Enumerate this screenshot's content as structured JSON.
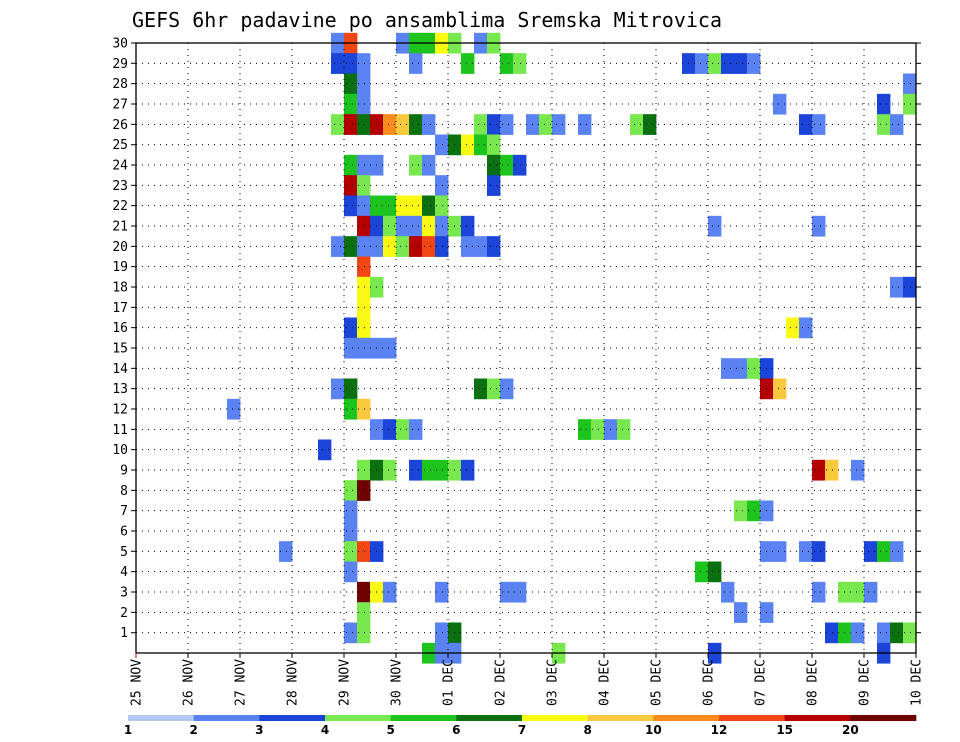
{
  "chart_data": {
    "type": "heatmap",
    "title": "GEFS 6hr padavine po ansamblima Sremska Mitrovica",
    "xlabel": "",
    "ylabel": "",
    "x_tick_labels": [
      "25 NOV",
      "26 NOV",
      "27 NOV",
      "28 NOV",
      "29 NOV",
      "30 NOV",
      "01 DEC",
      "02 DEC",
      "03 DEC",
      "04 DEC",
      "05 DEC",
      "06 DEC",
      "07 DEC",
      "08 DEC",
      "09 DEC",
      "10 DEC"
    ],
    "y_tick_labels": [
      "1",
      "2",
      "3",
      "4",
      "5",
      "6",
      "7",
      "8",
      "9",
      "10",
      "11",
      "12",
      "13",
      "14",
      "15",
      "16",
      "17",
      "18",
      "19",
      "20",
      "21",
      "22",
      "23",
      "24",
      "25",
      "26",
      "27",
      "28",
      "29",
      "30"
    ],
    "xlim": [
      0,
      60
    ],
    "ylim": [
      0,
      30
    ],
    "grid": true,
    "colorbar": {
      "levels": [
        "1",
        "2",
        "3",
        "4",
        "5",
        "6",
        "7",
        "8",
        "10",
        "12",
        "15",
        "20"
      ],
      "colors": [
        "#b4c8f4",
        "#5a82f0",
        "#1a45d8",
        "#78e84e",
        "#1ec41e",
        "#0a7010",
        "#fafa14",
        "#fac83c",
        "#fa8c1e",
        "#f04614",
        "#b40000",
        "#6e0000"
      ]
    },
    "cells": [
      [
        30,
        15,
        1
      ],
      [
        30,
        16,
        9
      ],
      [
        30,
        20,
        1
      ],
      [
        30,
        21,
        4
      ],
      [
        30,
        22,
        4
      ],
      [
        30,
        23,
        6
      ],
      [
        30,
        24,
        3
      ],
      [
        30,
        26,
        1
      ],
      [
        30,
        27,
        3
      ],
      [
        29,
        15,
        2
      ],
      [
        29,
        16,
        2
      ],
      [
        29,
        17,
        1
      ],
      [
        29,
        21,
        1
      ],
      [
        29,
        25,
        4
      ],
      [
        29,
        28,
        4
      ],
      [
        29,
        29,
        3
      ],
      [
        29,
        42,
        2
      ],
      [
        29,
        43,
        1
      ],
      [
        29,
        44,
        3
      ],
      [
        29,
        45,
        2
      ],
      [
        29,
        46,
        2
      ],
      [
        29,
        47,
        1
      ],
      [
        28,
        16,
        5
      ],
      [
        28,
        17,
        1
      ],
      [
        28,
        59,
        1
      ],
      [
        27,
        16,
        4
      ],
      [
        27,
        17,
        1
      ],
      [
        27,
        49,
        1
      ],
      [
        27,
        57,
        2
      ],
      [
        27,
        59,
        3
      ],
      [
        26,
        15,
        3
      ],
      [
        26,
        16,
        10
      ],
      [
        26,
        17,
        5
      ],
      [
        26,
        18,
        10
      ],
      [
        26,
        19,
        8
      ],
      [
        26,
        20,
        7
      ],
      [
        26,
        21,
        5
      ],
      [
        26,
        22,
        1
      ],
      [
        26,
        26,
        3
      ],
      [
        26,
        27,
        2
      ],
      [
        26,
        28,
        1
      ],
      [
        26,
        30,
        1
      ],
      [
        26,
        31,
        3
      ],
      [
        26,
        32,
        1
      ],
      [
        26,
        34,
        1
      ],
      [
        26,
        38,
        3
      ],
      [
        26,
        39,
        5
      ],
      [
        26,
        51,
        2
      ],
      [
        26,
        52,
        1
      ],
      [
        26,
        57,
        3
      ],
      [
        26,
        58,
        1
      ],
      [
        25,
        23,
        1
      ],
      [
        25,
        24,
        5
      ],
      [
        25,
        25,
        6
      ],
      [
        25,
        26,
        4
      ],
      [
        25,
        27,
        3
      ],
      [
        24,
        16,
        4
      ],
      [
        24,
        17,
        1
      ],
      [
        24,
        18,
        1
      ],
      [
        24,
        21,
        3
      ],
      [
        24,
        22,
        1
      ],
      [
        24,
        27,
        5
      ],
      [
        24,
        28,
        4
      ],
      [
        24,
        29,
        2
      ],
      [
        23,
        16,
        10
      ],
      [
        23,
        17,
        3
      ],
      [
        23,
        23,
        1
      ],
      [
        23,
        27,
        2
      ],
      [
        22,
        16,
        2
      ],
      [
        22,
        17,
        1
      ],
      [
        22,
        18,
        4
      ],
      [
        22,
        19,
        4
      ],
      [
        22,
        20,
        6
      ],
      [
        22,
        21,
        6
      ],
      [
        22,
        22,
        5
      ],
      [
        22,
        23,
        3
      ],
      [
        21,
        17,
        10
      ],
      [
        21,
        18,
        2
      ],
      [
        21,
        19,
        3
      ],
      [
        21,
        20,
        1
      ],
      [
        21,
        21,
        1
      ],
      [
        21,
        22,
        6
      ],
      [
        21,
        23,
        1
      ],
      [
        21,
        24,
        3
      ],
      [
        21,
        25,
        2
      ],
      [
        21,
        44,
        1
      ],
      [
        21,
        52,
        1
      ],
      [
        20,
        15,
        1
      ],
      [
        20,
        16,
        5
      ],
      [
        20,
        17,
        1
      ],
      [
        20,
        18,
        1
      ],
      [
        20,
        19,
        6
      ],
      [
        20,
        20,
        3
      ],
      [
        20,
        21,
        10
      ],
      [
        20,
        22,
        9
      ],
      [
        20,
        23,
        2
      ],
      [
        20,
        25,
        1
      ],
      [
        20,
        26,
        1
      ],
      [
        20,
        27,
        2
      ],
      [
        19,
        17,
        9
      ],
      [
        18,
        17,
        6
      ],
      [
        18,
        18,
        3
      ],
      [
        18,
        58,
        1
      ],
      [
        18,
        59,
        2
      ],
      [
        17,
        17,
        6
      ],
      [
        16,
        16,
        2
      ],
      [
        16,
        17,
        6
      ],
      [
        16,
        50,
        6
      ],
      [
        16,
        51,
        1
      ],
      [
        15,
        16,
        1
      ],
      [
        15,
        17,
        1
      ],
      [
        15,
        18,
        1
      ],
      [
        15,
        19,
        1
      ],
      [
        14,
        45,
        1
      ],
      [
        14,
        46,
        1
      ],
      [
        14,
        47,
        3
      ],
      [
        14,
        48,
        2
      ],
      [
        13,
        15,
        1
      ],
      [
        13,
        16,
        5
      ],
      [
        13,
        26,
        5
      ],
      [
        13,
        27,
        3
      ],
      [
        13,
        28,
        1
      ],
      [
        13,
        48,
        10
      ],
      [
        13,
        49,
        7
      ],
      [
        12,
        7,
        1
      ],
      [
        12,
        16,
        4
      ],
      [
        12,
        17,
        7
      ],
      [
        11,
        18,
        1
      ],
      [
        11,
        19,
        2
      ],
      [
        11,
        20,
        3
      ],
      [
        11,
        21,
        1
      ],
      [
        11,
        34,
        4
      ],
      [
        11,
        35,
        3
      ],
      [
        11,
        36,
        1
      ],
      [
        11,
        37,
        3
      ],
      [
        10,
        14,
        2
      ],
      [
        9,
        17,
        3
      ],
      [
        9,
        18,
        5
      ],
      [
        9,
        19,
        3
      ],
      [
        9,
        21,
        2
      ],
      [
        9,
        22,
        4
      ],
      [
        9,
        23,
        4
      ],
      [
        9,
        24,
        3
      ],
      [
        9,
        25,
        2
      ],
      [
        9,
        52,
        10
      ],
      [
        9,
        53,
        7
      ],
      [
        9,
        55,
        1
      ],
      [
        8,
        16,
        3
      ],
      [
        8,
        17,
        11
      ],
      [
        7,
        16,
        1
      ],
      [
        7,
        46,
        3
      ],
      [
        7,
        47,
        4
      ],
      [
        7,
        48,
        1
      ],
      [
        6,
        16,
        1
      ],
      [
        5,
        11,
        1
      ],
      [
        5,
        16,
        3
      ],
      [
        5,
        17,
        9
      ],
      [
        5,
        18,
        2
      ],
      [
        5,
        48,
        1
      ],
      [
        5,
        49,
        1
      ],
      [
        5,
        51,
        1
      ],
      [
        5,
        52,
        2
      ],
      [
        5,
        56,
        2
      ],
      [
        5,
        57,
        4
      ],
      [
        5,
        58,
        1
      ],
      [
        4,
        16,
        1
      ],
      [
        4,
        43,
        4
      ],
      [
        4,
        44,
        5
      ],
      [
        3,
        17,
        11
      ],
      [
        3,
        18,
        6
      ],
      [
        3,
        19,
        1
      ],
      [
        3,
        23,
        1
      ],
      [
        3,
        28,
        1
      ],
      [
        3,
        29,
        1
      ],
      [
        3,
        45,
        1
      ],
      [
        3,
        52,
        1
      ],
      [
        3,
        54,
        3
      ],
      [
        3,
        55,
        3
      ],
      [
        3,
        56,
        1
      ],
      [
        2,
        17,
        3
      ],
      [
        2,
        46,
        1
      ],
      [
        2,
        48,
        1
      ],
      [
        1,
        16,
        1
      ],
      [
        1,
        17,
        3
      ],
      [
        1,
        23,
        1
      ],
      [
        1,
        24,
        5
      ],
      [
        1,
        53,
        2
      ],
      [
        1,
        54,
        4
      ],
      [
        1,
        55,
        1
      ],
      [
        1,
        57,
        1
      ],
      [
        1,
        58,
        5
      ],
      [
        1,
        59,
        3
      ],
      [
        0,
        22,
        4
      ],
      [
        0,
        23,
        1
      ],
      [
        0,
        24,
        1
      ],
      [
        0,
        32,
        3
      ],
      [
        0,
        44,
        2
      ],
      [
        0,
        57,
        2
      ]
    ]
  }
}
